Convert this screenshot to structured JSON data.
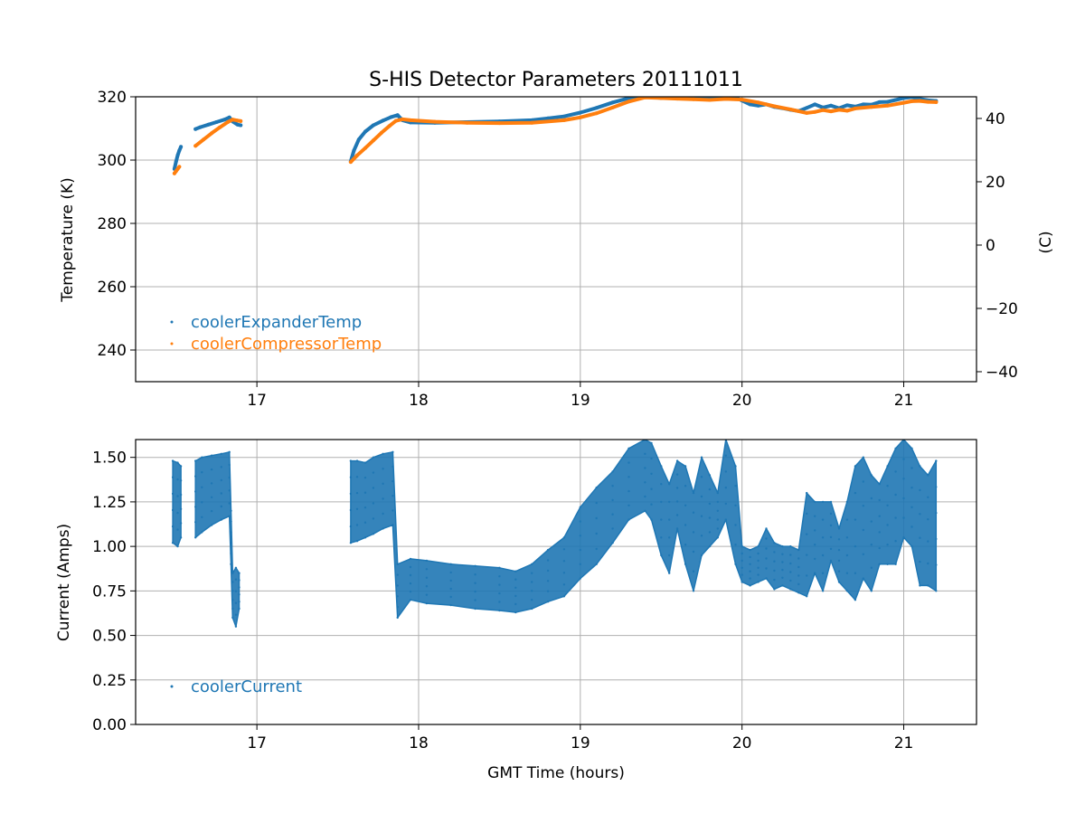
{
  "colors": {
    "blue": "#1f77b4",
    "orange": "#ff7f0e",
    "grid": "#b0b0b0",
    "frame": "#000000"
  },
  "chart_data": [
    {
      "type": "scatter",
      "title": "S-HIS Detector Parameters 20111011",
      "xlabel": "",
      "ylabel": "Temperature (K)",
      "ylabel_right": "(C)",
      "xlim": [
        16.25,
        21.45
      ],
      "ylim": [
        230,
        320
      ],
      "ylim_right": [
        -43.15,
        46.85
      ],
      "xticks": [
        17,
        18,
        19,
        20,
        21
      ],
      "xticklabels": [
        "17",
        "18",
        "19",
        "20",
        "21"
      ],
      "yticks": [
        240,
        260,
        280,
        300,
        320
      ],
      "yticklabels": [
        "240",
        "260",
        "280",
        "300",
        "320"
      ],
      "yticks_right": [
        -40,
        -20,
        0,
        20,
        40
      ],
      "yticklabels_right": [
        "−40",
        "−20",
        "0",
        "20",
        "40"
      ],
      "grid": true,
      "legend_position": "lower-left",
      "series": [
        {
          "name": "coolerExpanderTemp",
          "color": "#1f77b4",
          "segments": [
            [
              [
                16.49,
                297.2
              ],
              [
                16.5,
                299.5
              ],
              [
                16.51,
                301.5
              ],
              [
                16.52,
                303.0
              ],
              [
                16.53,
                304.2
              ]
            ],
            [
              [
                16.62,
                309.8
              ],
              [
                16.65,
                310.4
              ],
              [
                16.7,
                311.2
              ],
              [
                16.75,
                312.0
              ],
              [
                16.8,
                312.8
              ],
              [
                16.83,
                313.5
              ],
              [
                16.85,
                312.2
              ],
              [
                16.88,
                311.2
              ],
              [
                16.9,
                311.0
              ]
            ],
            [
              [
                17.58,
                299.6
              ],
              [
                17.6,
                303.0
              ],
              [
                17.63,
                306.5
              ],
              [
                17.67,
                309.0
              ],
              [
                17.72,
                311.0
              ],
              [
                17.78,
                312.5
              ],
              [
                17.83,
                313.6
              ],
              [
                17.87,
                314.2
              ],
              [
                17.9,
                312.6
              ],
              [
                17.95,
                311.9
              ],
              [
                18.1,
                311.8
              ],
              [
                18.3,
                312.0
              ],
              [
                18.5,
                312.2
              ],
              [
                18.7,
                312.6
              ],
              [
                18.8,
                313.2
              ],
              [
                18.9,
                313.8
              ],
              [
                19.0,
                315.0
              ],
              [
                19.1,
                316.5
              ],
              [
                19.2,
                318.2
              ],
              [
                19.3,
                319.6
              ],
              [
                19.4,
                320.2
              ],
              [
                19.5,
                319.6
              ],
              [
                19.55,
                319.8
              ],
              [
                19.65,
                319.7
              ],
              [
                19.75,
                319.6
              ],
              [
                19.85,
                319.8
              ],
              [
                19.95,
                320.0
              ],
              [
                20.0,
                318.8
              ],
              [
                20.05,
                317.6
              ],
              [
                20.1,
                317.2
              ],
              [
                20.15,
                317.6
              ],
              [
                20.2,
                316.8
              ],
              [
                20.25,
                316.4
              ],
              [
                20.3,
                315.9
              ],
              [
                20.35,
                315.5
              ],
              [
                20.4,
                316.5
              ],
              [
                20.45,
                317.6
              ],
              [
                20.5,
                316.6
              ],
              [
                20.55,
                317.2
              ],
              [
                20.6,
                316.4
              ],
              [
                20.65,
                317.3
              ],
              [
                20.7,
                316.9
              ],
              [
                20.75,
                317.6
              ],
              [
                20.8,
                317.5
              ],
              [
                20.85,
                318.3
              ],
              [
                20.9,
                318.4
              ],
              [
                20.95,
                319.0
              ],
              [
                21.0,
                319.6
              ],
              [
                21.05,
                319.9
              ],
              [
                21.1,
                319.3
              ],
              [
                21.15,
                318.9
              ],
              [
                21.2,
                318.7
              ]
            ]
          ]
        },
        {
          "name": "coolerCompressorTemp",
          "color": "#ff7f0e",
          "segments": [
            [
              [
                16.49,
                295.8
              ],
              [
                16.5,
                296.5
              ],
              [
                16.51,
                297.2
              ],
              [
                16.52,
                297.9
              ]
            ],
            [
              [
                16.62,
                304.5
              ],
              [
                16.67,
                306.5
              ],
              [
                16.72,
                308.5
              ],
              [
                16.77,
                310.3
              ],
              [
                16.82,
                312.0
              ],
              [
                16.85,
                312.8
              ],
              [
                16.88,
                312.5
              ],
              [
                16.9,
                312.3
              ]
            ],
            [
              [
                17.58,
                299.4
              ],
              [
                17.62,
                301.5
              ],
              [
                17.67,
                303.8
              ],
              [
                17.72,
                306.2
              ],
              [
                17.77,
                308.6
              ],
              [
                17.82,
                310.8
              ],
              [
                17.86,
                312.4
              ],
              [
                17.9,
                312.9
              ],
              [
                17.95,
                312.6
              ],
              [
                18.1,
                312.1
              ],
              [
                18.3,
                311.8
              ],
              [
                18.5,
                311.7
              ],
              [
                18.7,
                311.8
              ],
              [
                18.9,
                312.6
              ],
              [
                19.0,
                313.5
              ],
              [
                19.1,
                314.8
              ],
              [
                19.2,
                316.6
              ],
              [
                19.3,
                318.5
              ],
              [
                19.4,
                319.8
              ],
              [
                19.5,
                319.6
              ],
              [
                19.6,
                319.4
              ],
              [
                19.7,
                319.2
              ],
              [
                19.8,
                319.0
              ],
              [
                19.9,
                319.3
              ],
              [
                20.0,
                319.1
              ],
              [
                20.1,
                318.2
              ],
              [
                20.2,
                317.0
              ],
              [
                20.3,
                316.0
              ],
              [
                20.4,
                314.9
              ],
              [
                20.45,
                315.2
              ],
              [
                20.5,
                315.8
              ],
              [
                20.55,
                315.4
              ],
              [
                20.6,
                315.9
              ],
              [
                20.65,
                315.6
              ],
              [
                20.7,
                316.3
              ],
              [
                20.8,
                316.8
              ],
              [
                20.9,
                317.2
              ],
              [
                21.0,
                318.1
              ],
              [
                21.05,
                318.6
              ],
              [
                21.1,
                318.7
              ],
              [
                21.15,
                318.4
              ],
              [
                21.2,
                318.3
              ]
            ]
          ]
        }
      ]
    },
    {
      "type": "scatter",
      "title": "",
      "xlabel": "GMT Time (hours)",
      "ylabel": "Current (Amps)",
      "xlim": [
        16.25,
        21.45
      ],
      "ylim": [
        0.0,
        1.6
      ],
      "xticks": [
        17,
        18,
        19,
        20,
        21
      ],
      "xticklabels": [
        "17",
        "18",
        "19",
        "20",
        "21"
      ],
      "yticks": [
        0.0,
        0.25,
        0.5,
        0.75,
        1.0,
        1.25,
        1.5
      ],
      "yticklabels": [
        "0.00",
        "0.25",
        "0.50",
        "0.75",
        "1.00",
        "1.25",
        "1.50"
      ],
      "grid": true,
      "legend_position": "lower-left",
      "series": [
        {
          "name": "coolerCurrent",
          "color": "#1f77b4",
          "render": "band",
          "band_segments": [
            [
              [
                16.48,
                1.02,
                1.48
              ],
              [
                16.51,
                1.0,
                1.47
              ],
              [
                16.53,
                1.05,
                1.45
              ]
            ],
            [
              [
                16.62,
                1.05,
                1.48
              ],
              [
                16.66,
                1.08,
                1.5
              ],
              [
                16.72,
                1.12,
                1.51
              ],
              [
                16.78,
                1.15,
                1.52
              ],
              [
                16.83,
                1.17,
                1.53
              ],
              [
                16.84,
                0.9,
                1.2
              ],
              [
                16.85,
                0.6,
                0.85
              ],
              [
                16.87,
                0.55,
                0.88
              ],
              [
                16.89,
                0.65,
                0.85
              ]
            ],
            [
              [
                17.58,
                1.02,
                1.48
              ],
              [
                17.62,
                1.03,
                1.48
              ],
              [
                17.67,
                1.05,
                1.47
              ],
              [
                17.72,
                1.07,
                1.5
              ],
              [
                17.78,
                1.1,
                1.52
              ],
              [
                17.84,
                1.12,
                1.53
              ],
              [
                17.87,
                0.6,
                0.9
              ],
              [
                17.95,
                0.7,
                0.93
              ],
              [
                18.05,
                0.68,
                0.92
              ],
              [
                18.2,
                0.67,
                0.9
              ],
              [
                18.35,
                0.65,
                0.89
              ],
              [
                18.5,
                0.64,
                0.88
              ],
              [
                18.6,
                0.63,
                0.86
              ],
              [
                18.7,
                0.65,
                0.9
              ],
              [
                18.8,
                0.69,
                0.98
              ],
              [
                18.9,
                0.72,
                1.05
              ],
              [
                19.0,
                0.82,
                1.22
              ],
              [
                19.1,
                0.9,
                1.33
              ],
              [
                19.2,
                1.02,
                1.42
              ],
              [
                19.3,
                1.15,
                1.55
              ],
              [
                19.4,
                1.2,
                1.6
              ],
              [
                19.44,
                1.15,
                1.58
              ],
              [
                19.5,
                0.95,
                1.45
              ],
              [
                19.55,
                0.85,
                1.35
              ],
              [
                19.6,
                1.1,
                1.48
              ],
              [
                19.65,
                0.9,
                1.45
              ],
              [
                19.7,
                0.75,
                1.3
              ],
              [
                19.75,
                0.95,
                1.5
              ],
              [
                19.8,
                1.0,
                1.4
              ],
              [
                19.85,
                1.05,
                1.3
              ],
              [
                19.9,
                1.15,
                1.6
              ],
              [
                19.96,
                0.9,
                1.45
              ],
              [
                20.0,
                0.8,
                1.0
              ],
              [
                20.05,
                0.78,
                0.98
              ],
              [
                20.1,
                0.8,
                1.0
              ],
              [
                20.15,
                0.82,
                1.1
              ],
              [
                20.2,
                0.76,
                1.02
              ],
              [
                20.25,
                0.78,
                1.0
              ],
              [
                20.3,
                0.76,
                1.0
              ],
              [
                20.35,
                0.74,
                0.98
              ],
              [
                20.4,
                0.72,
                1.3
              ],
              [
                20.45,
                0.85,
                1.25
              ],
              [
                20.5,
                0.75,
                1.25
              ],
              [
                20.55,
                0.92,
                1.25
              ],
              [
                20.6,
                0.8,
                1.1
              ],
              [
                20.65,
                0.75,
                1.25
              ],
              [
                20.7,
                0.7,
                1.45
              ],
              [
                20.75,
                0.82,
                1.5
              ],
              [
                20.8,
                0.75,
                1.4
              ],
              [
                20.85,
                0.9,
                1.35
              ],
              [
                20.9,
                0.9,
                1.45
              ],
              [
                20.95,
                0.9,
                1.55
              ],
              [
                21.0,
                1.05,
                1.6
              ],
              [
                21.05,
                1.0,
                1.55
              ],
              [
                21.1,
                0.78,
                1.45
              ],
              [
                21.15,
                0.78,
                1.4
              ],
              [
                21.2,
                0.75,
                1.48
              ]
            ]
          ]
        }
      ]
    }
  ]
}
